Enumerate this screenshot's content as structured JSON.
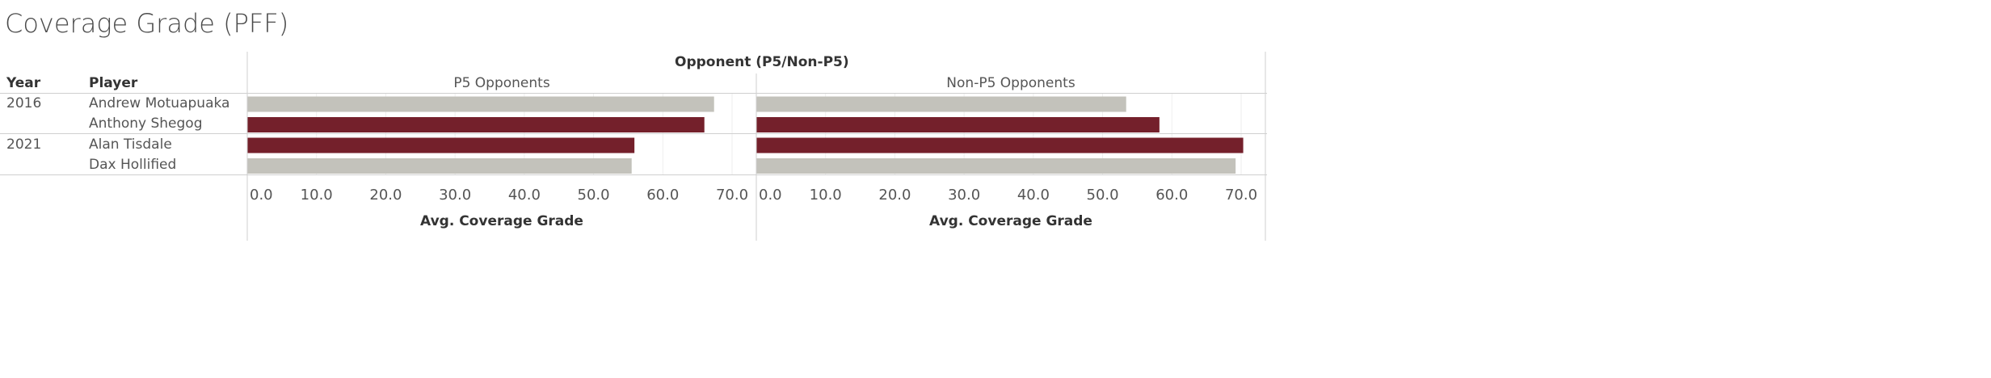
{
  "title": "Coverage Grade (PFF)",
  "headers": {
    "year": "Year",
    "player": "Player",
    "column_group": "Opponent (P5/Non-P5)"
  },
  "colors": {
    "highlight": "#74202B",
    "base": "#C3C2BB"
  },
  "rows": [
    {
      "year": "2016",
      "player": "Andrew Motuapuaka"
    },
    {
      "year": "",
      "player": "Anthony Shegog"
    },
    {
      "year": "2021",
      "player": "Alan Tisdale"
    },
    {
      "year": "",
      "player": "Dax Hollified"
    }
  ],
  "chart_data": {
    "type": "bar",
    "orientation": "horizontal",
    "categories": [
      "Andrew Motuapuaka",
      "Anthony Shegog",
      "Alan Tisdale",
      "Dax Hollified"
    ],
    "highlighted": [
      "Anthony Shegog",
      "Alan Tisdale"
    ],
    "panes": [
      {
        "name": "P5 Opponents",
        "values": [
          67.4,
          66.0,
          55.9,
          55.5
        ]
      },
      {
        "name": "Non-P5 Opponents",
        "values": [
          53.4,
          58.2,
          70.3,
          69.2
        ]
      }
    ],
    "xlabel": "Avg. Coverage Grade",
    "xlim": [
      0,
      73.5
    ],
    "ticks": [
      0,
      10,
      20,
      30,
      40,
      50,
      60,
      70
    ],
    "tick_labels": [
      "0.0",
      "10.0",
      "20.0",
      "30.0",
      "40.0",
      "50.0",
      "60.0",
      "70.0"
    ]
  }
}
